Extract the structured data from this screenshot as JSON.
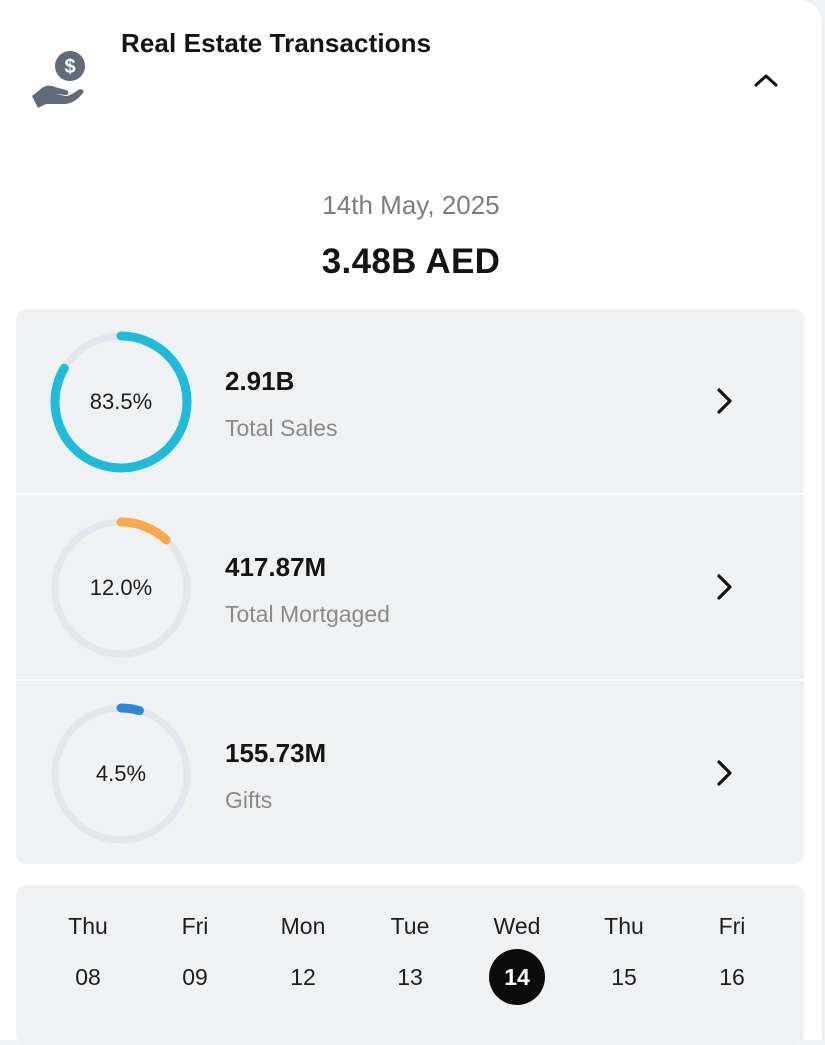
{
  "header": {
    "title": "Real Estate Transactions",
    "icon": "hand-dollar-icon",
    "collapse_icon": "chevron-up-icon"
  },
  "summary": {
    "date": "14th May, 2025",
    "total": "3.48B AED"
  },
  "metrics": [
    {
      "percent_label": "83.5%",
      "percent": 83.5,
      "value": "2.91B",
      "label": "Total Sales",
      "color": "#1ebcd8"
    },
    {
      "percent_label": "12.0%",
      "percent": 12.0,
      "value": "417.87M",
      "label": "Total Mortgaged",
      "color": "#f7a94b"
    },
    {
      "percent_label": "4.5%",
      "percent": 4.5,
      "value": "155.73M",
      "label": "Gifts",
      "color": "#2f86d6"
    }
  ],
  "calendar": {
    "days": [
      {
        "name": "Thu",
        "num": "08"
      },
      {
        "name": "Fri",
        "num": "09"
      },
      {
        "name": "Mon",
        "num": "12"
      },
      {
        "name": "Tue",
        "num": "13"
      },
      {
        "name": "Wed",
        "num": "14",
        "selected": true
      },
      {
        "name": "Thu",
        "num": "15"
      },
      {
        "name": "Fri",
        "num": "16"
      }
    ]
  },
  "colors": {
    "ring_track": "#e3e6ec",
    "selected_day_bg": "#0b0b0b"
  }
}
